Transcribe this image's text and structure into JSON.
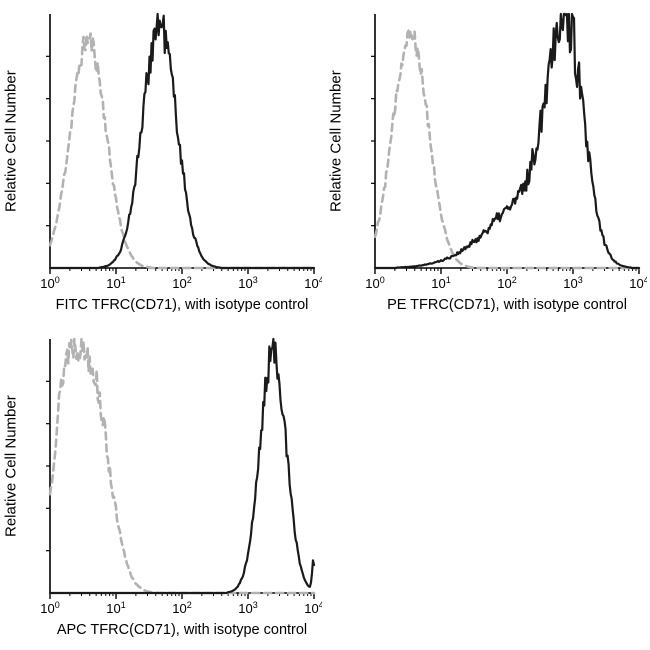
{
  "page": {
    "background": "#ffffff",
    "description": "Flow cytometry histogram overlays, antibody stain vs isotype control"
  },
  "colors": {
    "stain": "#1a1a1a",
    "isotype": "#b2b2b2",
    "axis": "#000000"
  },
  "chart_data": [
    {
      "type": "line",
      "panel": "FITC",
      "title": "",
      "xlabel": "FITC TFRC(CD71), with isotype control",
      "ylabel": "Relative Cell Number",
      "x_scale": "log10",
      "x_range_decades": [
        0,
        4
      ],
      "x_ticks_exponents": [
        0,
        1,
        2,
        3,
        4
      ],
      "x_tick_base": "10",
      "y_range": [
        0,
        1
      ],
      "grid": false,
      "legend": "none",
      "series": [
        {
          "name": "isotype control",
          "color": "#b2b2b2",
          "dash": true,
          "width": 2.6,
          "noise": 0.05,
          "seed": 11,
          "components": [
            {
              "mu": 0.58,
              "sigma": 0.27,
              "h": 0.9
            }
          ]
        },
        {
          "name": "FITC TFRC(CD71)",
          "color": "#1a1a1a",
          "dash": false,
          "width": 2.2,
          "noise": 0.08,
          "seed": 21,
          "components": [
            {
              "mu": 1.66,
              "sigma": 0.26,
              "h": 0.96
            }
          ]
        }
      ]
    },
    {
      "type": "line",
      "panel": "PE",
      "title": "",
      "xlabel": "PE TFRC(CD71), with isotype control",
      "ylabel": "Relative Cell Number",
      "x_scale": "log10",
      "x_range_decades": [
        0,
        4
      ],
      "x_ticks_exponents": [
        0,
        1,
        2,
        3,
        4
      ],
      "x_tick_base": "10",
      "y_range": [
        0,
        1
      ],
      "grid": false,
      "legend": "none",
      "series": [
        {
          "name": "isotype control",
          "color": "#b2b2b2",
          "dash": true,
          "width": 2.6,
          "noise": 0.05,
          "seed": 12,
          "components": [
            {
              "mu": 0.54,
              "sigma": 0.27,
              "h": 0.93
            }
          ]
        },
        {
          "name": "PE TFRC(CD71)",
          "color": "#1a1a1a",
          "dash": false,
          "width": 2.2,
          "noise": 0.12,
          "seed": 22,
          "components": [
            {
              "mu": 2.88,
              "sigma": 0.28,
              "h": 0.93
            },
            {
              "mu": 2.25,
              "sigma": 0.45,
              "h": 0.22
            },
            {
              "mu": 1.6,
              "sigma": 0.5,
              "h": 0.05
            }
          ]
        }
      ]
    },
    {
      "type": "line",
      "panel": "APC",
      "title": "",
      "xlabel": "APC TFRC(CD71), with isotype control",
      "ylabel": "Relative Cell Number",
      "x_scale": "log10",
      "x_range_decades": [
        0,
        4
      ],
      "x_ticks_exponents": [
        0,
        1,
        2,
        3,
        4
      ],
      "x_tick_base": "10",
      "y_range": [
        0,
        1
      ],
      "grid": false,
      "legend": "none",
      "series": [
        {
          "name": "isotype control",
          "color": "#b2b2b2",
          "dash": true,
          "width": 2.6,
          "noise": 0.07,
          "seed": 13,
          "components": [
            {
              "mu": 0.6,
              "sigma": 0.28,
              "h": 0.88
            },
            {
              "mu": 0.2,
              "sigma": 0.18,
              "h": 0.55
            }
          ]
        },
        {
          "name": "APC TFRC(CD71)",
          "color": "#1a1a1a",
          "dash": false,
          "width": 2.2,
          "noise": 0.07,
          "seed": 23,
          "components": [
            {
              "mu": 3.38,
              "sigma": 0.2,
              "h": 0.95
            },
            {
              "mu": 3.99,
              "sigma": 0.02,
              "h": 0.12
            }
          ]
        }
      ]
    }
  ]
}
